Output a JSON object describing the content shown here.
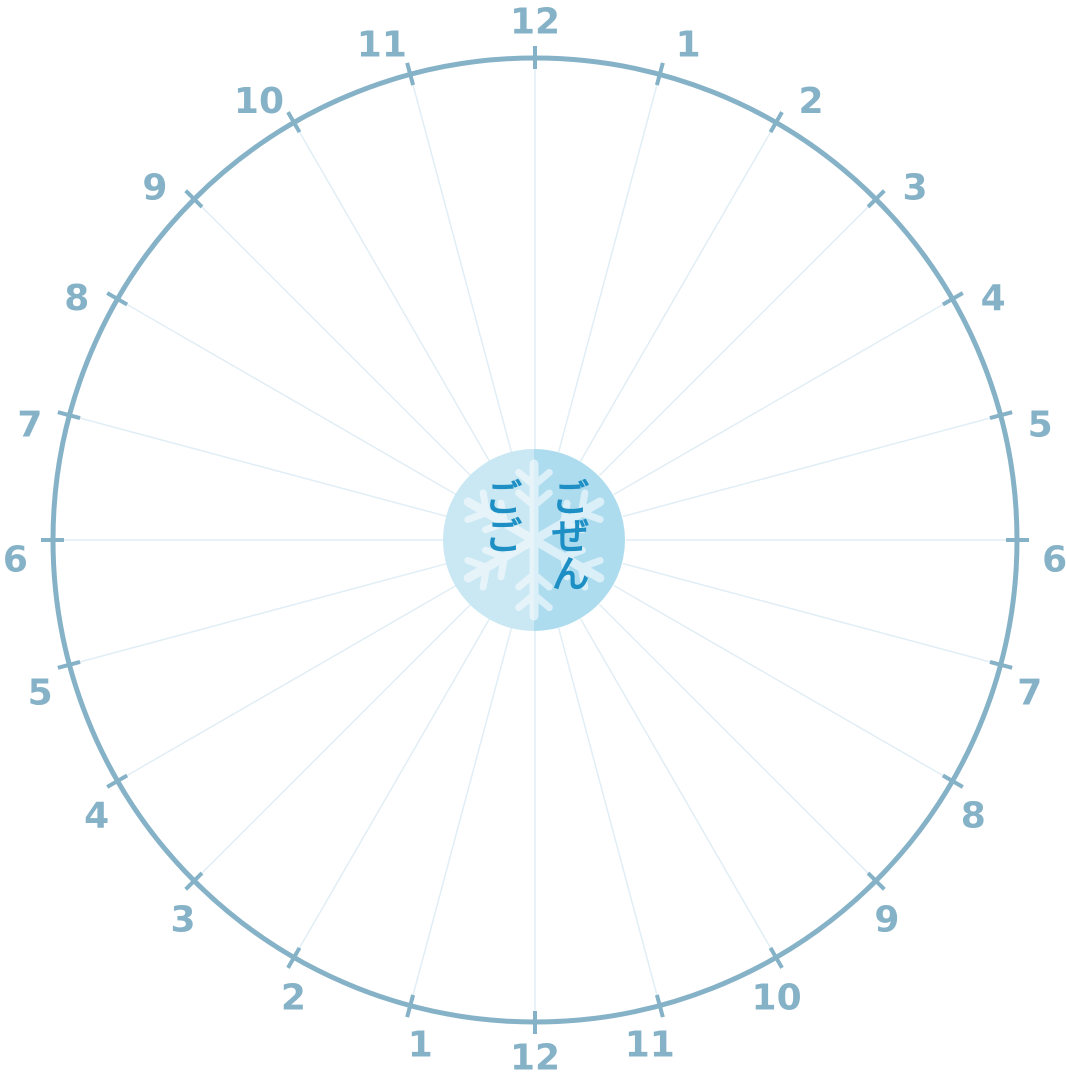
{
  "clock": {
    "am_label": "ごぜん",
    "pm_label": "ごご",
    "right_half_hours": [
      "12",
      "1",
      "2",
      "3",
      "4",
      "5",
      "6",
      "7",
      "8",
      "9",
      "10",
      "11",
      "12"
    ],
    "left_half_hours": [
      "12",
      "11",
      "10",
      "9",
      "8",
      "7",
      "6",
      "5",
      "4",
      "3",
      "2",
      "1",
      "12"
    ],
    "divisions": 24,
    "center_icon": "snowflake-icon",
    "colors": {
      "ring": "#86b2c8",
      "label": "#86b2c8",
      "spoke": "#e1eef5",
      "center_left": "#c9e8f3",
      "center_right": "#aedcef",
      "center_text": "#1d8fc4",
      "snowflake": "#ffffff"
    }
  }
}
